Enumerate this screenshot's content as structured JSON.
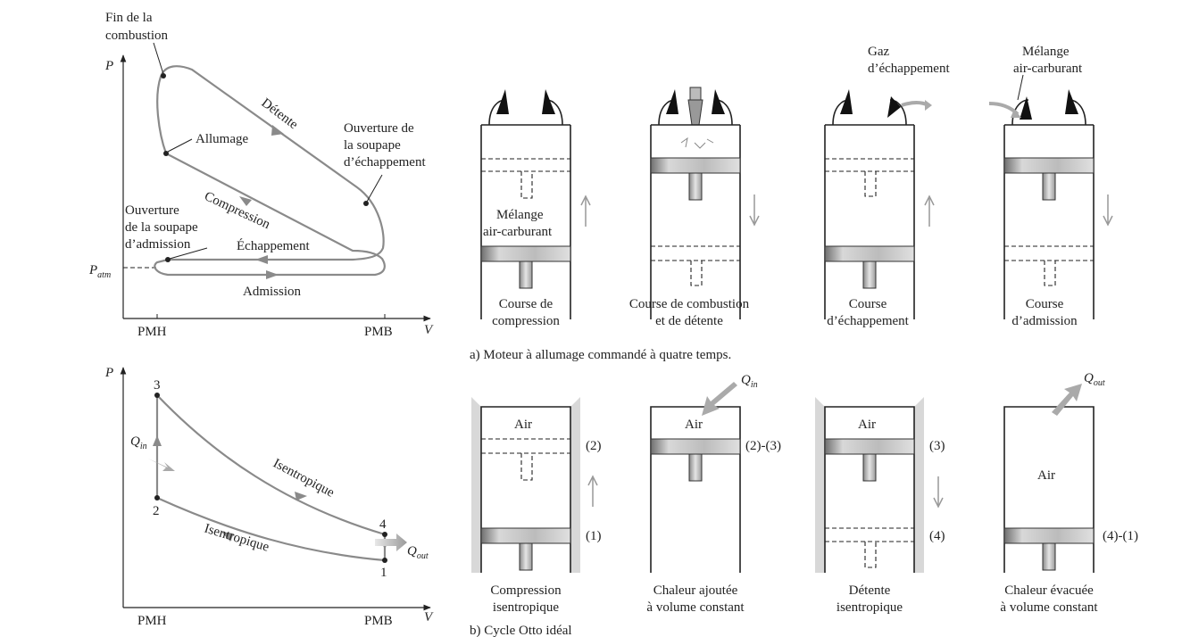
{
  "pv_top": {
    "axis_y": "P",
    "axis_x": "V",
    "tick_pmh": "PMH",
    "tick_pmb": "PMB",
    "patm_main": "P",
    "patm_sub": "atm",
    "fin_line1": "Fin de la",
    "fin_line2": "combustion",
    "allumage": "Allumage",
    "detente": "Détente",
    "ouv_ech_1": "Ouverture de",
    "ouv_ech_2": "la soupape",
    "ouv_ech_3": "d’échappement",
    "ouv_adm_1": "Ouverture",
    "ouv_adm_2": "de la soupape",
    "ouv_adm_3": "d’admission",
    "compression": "Compression",
    "echappement": "Échappement",
    "admission": "Admission"
  },
  "pv_bottom": {
    "axis_y": "P",
    "axis_x": "V",
    "tick_pmh": "PMH",
    "tick_pmb": "PMB",
    "p1": "1",
    "p2": "2",
    "p3": "3",
    "p4": "4",
    "qin_main": "Q",
    "qin_sub": "in",
    "qout_main": "Q",
    "qout_sub": "out",
    "isen_top": "Isentropique",
    "isen_bottom": "Isentropique"
  },
  "engine_top": {
    "gaz_1": "Gaz",
    "gaz_2": "d’échappement",
    "mel_1": "Mélange",
    "mel_2": "air-carburant",
    "inner_1": "Mélange",
    "inner_2": "air-carburant",
    "c1_1": "Course de",
    "c1_2": "compression",
    "c2_1": "Course de combustion",
    "c2_2": "et de détente",
    "c3_1": "Course",
    "c3_2": "d’échappement",
    "c4_1": "Course",
    "c4_2": "d’admission",
    "caption": "a) Moteur à allumage commandé à quatre temps."
  },
  "engine_bottom": {
    "air": "Air",
    "qin_main": "Q",
    "qin_sub": "in",
    "qout_main": "Q",
    "qout_sub": "out",
    "m2": "(2)",
    "m1": "(1)",
    "m23": "(2)-(3)",
    "m3": "(3)",
    "m4": "(4)",
    "m41": "(4)-(1)",
    "b1_1": "Compression",
    "b1_2": "isentropique",
    "b2_1": "Chaleur ajoutée",
    "b2_2": "à volume constant",
    "b3_1": "Détente",
    "b3_2": "isentropique",
    "b4_1": "Chaleur évacuée",
    "b4_2": "à volume constant",
    "caption": "b) Cycle Otto idéal"
  }
}
